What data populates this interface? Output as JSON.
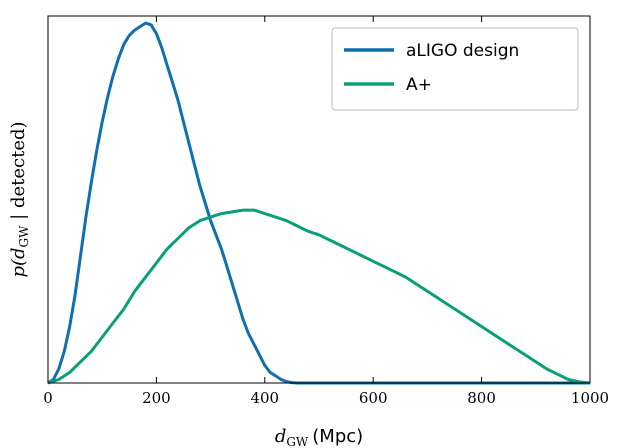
{
  "chart_data": {
    "type": "line",
    "xlabel": "d_GW (Mpc)",
    "xlabel_parts": {
      "var": "d",
      "sub": "GW",
      "unit": "(Mpc)"
    },
    "ylabel": "p(d_GW | detected)",
    "ylabel_parts": {
      "pre": "p(d",
      "sub": "GW",
      "post": " | detected)"
    },
    "xlim": [
      0,
      1000
    ],
    "ylim": [
      0,
      1.04
    ],
    "xticks": [
      0,
      200,
      400,
      600,
      800,
      1000
    ],
    "xtick_labels": [
      "0",
      "200",
      "400",
      "600",
      "800",
      "1000"
    ],
    "yticks_shown": false,
    "grid": false,
    "legend_position": "top-right",
    "series": [
      {
        "name": "aLIGO design",
        "color": "#0f6fb0",
        "x": [
          0,
          10,
          20,
          30,
          40,
          50,
          60,
          70,
          80,
          90,
          100,
          110,
          120,
          130,
          140,
          150,
          160,
          170,
          180,
          190,
          200,
          210,
          220,
          230,
          240,
          250,
          260,
          270,
          280,
          290,
          300,
          310,
          320,
          330,
          340,
          350,
          360,
          370,
          380,
          390,
          400,
          410,
          420,
          430,
          440,
          450,
          460,
          470,
          1000
        ],
        "y": [
          0,
          0.01,
          0.04,
          0.09,
          0.16,
          0.25,
          0.36,
          0.47,
          0.57,
          0.66,
          0.74,
          0.81,
          0.87,
          0.92,
          0.96,
          0.985,
          1.0,
          1.01,
          1.02,
          1.015,
          0.99,
          0.95,
          0.9,
          0.85,
          0.8,
          0.74,
          0.68,
          0.62,
          0.56,
          0.51,
          0.46,
          0.42,
          0.38,
          0.33,
          0.28,
          0.23,
          0.18,
          0.14,
          0.11,
          0.08,
          0.05,
          0.03,
          0.02,
          0.01,
          0.004,
          0.001,
          0.0,
          0.0,
          0.0
        ]
      },
      {
        "name": "A+",
        "color": "#0b9e78",
        "x": [
          0,
          20,
          40,
          60,
          80,
          100,
          120,
          140,
          160,
          180,
          200,
          220,
          240,
          260,
          280,
          300,
          320,
          340,
          360,
          380,
          400,
          420,
          440,
          460,
          480,
          500,
          520,
          540,
          560,
          580,
          600,
          620,
          640,
          660,
          680,
          700,
          720,
          740,
          760,
          780,
          800,
          820,
          840,
          860,
          880,
          900,
          920,
          940,
          960,
          980,
          1000
        ],
        "y": [
          0,
          0.01,
          0.03,
          0.06,
          0.09,
          0.13,
          0.17,
          0.21,
          0.26,
          0.3,
          0.34,
          0.38,
          0.41,
          0.44,
          0.46,
          0.47,
          0.48,
          0.485,
          0.49,
          0.49,
          0.48,
          0.47,
          0.46,
          0.445,
          0.43,
          0.42,
          0.405,
          0.39,
          0.375,
          0.36,
          0.345,
          0.33,
          0.315,
          0.3,
          0.28,
          0.26,
          0.24,
          0.22,
          0.2,
          0.18,
          0.16,
          0.14,
          0.12,
          0.1,
          0.08,
          0.06,
          0.04,
          0.025,
          0.01,
          0.003,
          0.0
        ]
      }
    ]
  }
}
